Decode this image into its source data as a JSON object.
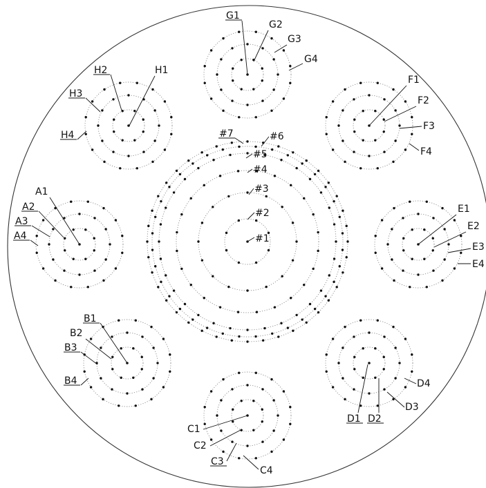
{
  "labels": {
    "G1": "G1",
    "G2": "G2",
    "G3": "G3",
    "G4": "G4",
    "H1": "H1",
    "H2": "H2",
    "H3": "H3",
    "H4": "H4",
    "F1": "F1",
    "F2": "F2",
    "F3": "F3",
    "F4": "F4",
    "A1": "A1",
    "A2": "A2",
    "A3": "A3",
    "A4": "A4",
    "E1": "E1",
    "E2": "E2",
    "E3": "E3",
    "E4": "E4",
    "B1": "B1",
    "B2": "B2",
    "B3": "B3",
    "B4": "B4",
    "C1": "C1",
    "C2": "C2",
    "C3": "C3",
    "C4": "C4",
    "D1": "D1",
    "D2": "D2",
    "D3": "D3",
    "D4": "D4",
    "c1": "#1",
    "c2": "#2",
    "c3": "#3",
    "c4": "#4",
    "c5": "#5",
    "c6": "#6",
    "c7": "#7"
  },
  "clusters": {
    "small": {
      "rings": 4,
      "points_per_ring": [
        0,
        8,
        12,
        16
      ]
    },
    "central": {
      "rings": 7,
      "points_per_ring": [
        0,
        8,
        16,
        24,
        32,
        36,
        40
      ]
    }
  }
}
